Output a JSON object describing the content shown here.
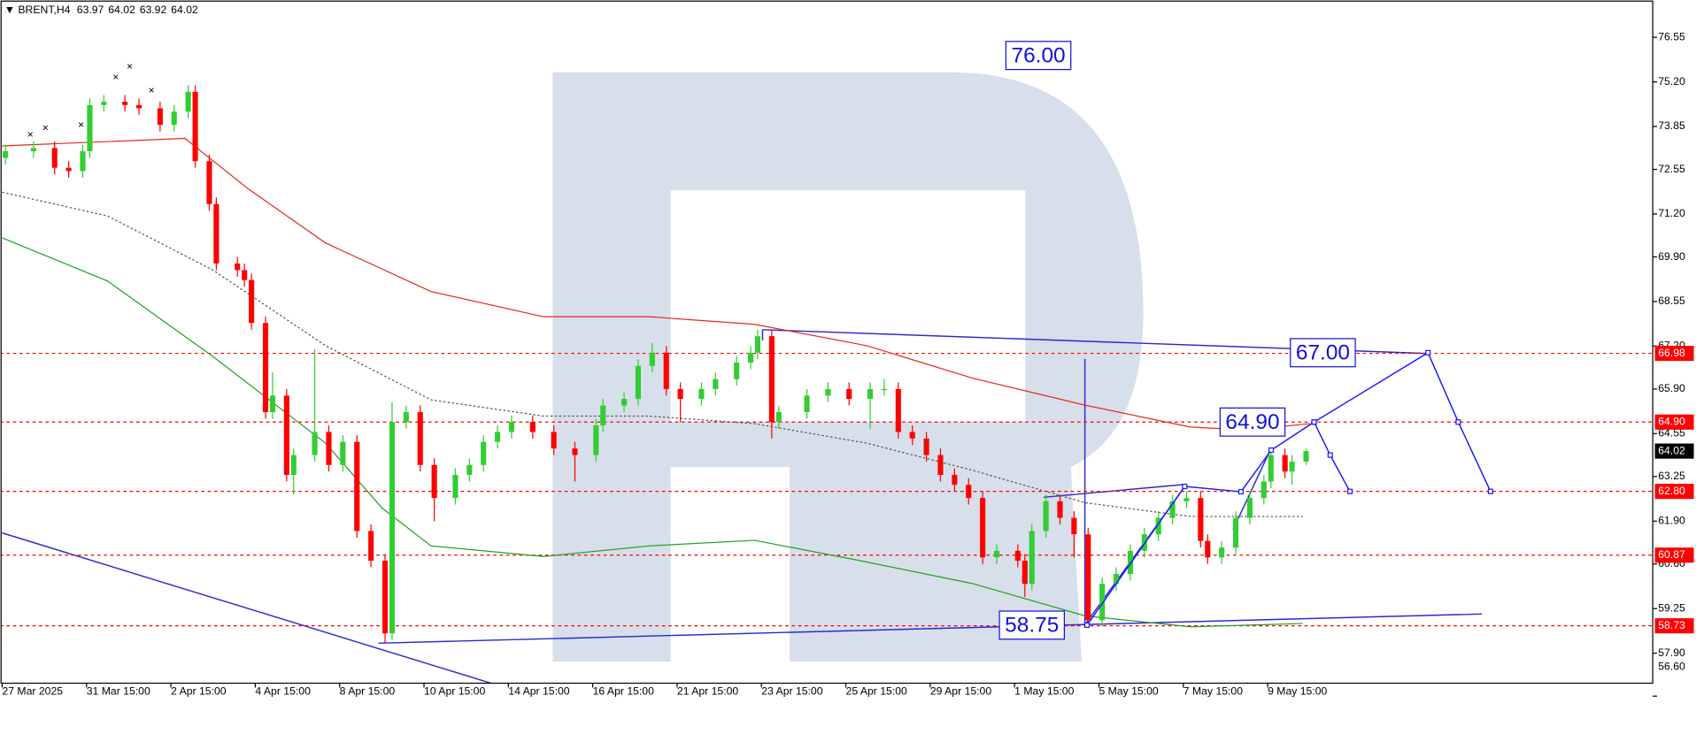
{
  "chart_data": {
    "type": "candlestick",
    "symbol": "BRENT,H4",
    "header_ohlc": [
      63.97,
      64.02,
      63.92,
      64.02
    ],
    "up_color": "#32cd32",
    "down_color": "#ff0000",
    "x": [
      0,
      4,
      7,
      9,
      11,
      12,
      14,
      17,
      19,
      22,
      24,
      26,
      27,
      29,
      30,
      33,
      34,
      35,
      37,
      38,
      40,
      41,
      44,
      46,
      48,
      50,
      52,
      54,
      55,
      57,
      59,
      61,
      64,
      66,
      68,
      70,
      72,
      75,
      78,
      81,
      84,
      85,
      88,
      90,
      92,
      94,
      96,
      99,
      101,
      104,
      106,
      107,
      109,
      110,
      114,
      117,
      120,
      123,
      125,
      127,
      129,
      131,
      133,
      135,
      137,
      139,
      141,
      144,
      145,
      146,
      148,
      150,
      152,
      154,
      156,
      158,
      160,
      162,
      164,
      166,
      168,
      170,
      171,
      173,
      175,
      177,
      179,
      180,
      182,
      183,
      185
    ],
    "open": [
      72.9,
      73.1,
      73.2,
      72.6,
      72.5,
      73.1,
      74.5,
      74.6,
      74.5,
      74.4,
      73.9,
      74.3,
      74.9,
      72.8,
      71.5,
      69.7,
      69.5,
      69.2,
      67.9,
      65.2,
      65.7,
      63.3,
      63.9,
      64.6,
      63.6,
      64.3,
      61.6,
      60.7,
      58.5,
      64.9,
      65.2,
      63.6,
      62.6,
      63.3,
      63.6,
      64.3,
      64.6,
      64.9,
      64.6,
      64.1,
      63.9,
      64.8,
      65.4,
      65.6,
      66.6,
      67.0,
      65.9,
      65.6,
      65.9,
      66.2,
      66.7,
      67.0,
      67.5,
      64.9,
      65.2,
      65.7,
      65.9,
      65.6,
      65.9,
      65.9,
      64.6,
      64.4,
      63.9,
      63.3,
      63.0,
      62.6,
      60.8,
      61.0,
      60.7,
      60.0,
      61.6,
      62.5,
      62.0,
      61.5,
      58.9,
      60.0,
      60.3,
      61.0,
      61.5,
      62.0,
      62.5,
      62.6,
      61.3,
      60.8,
      61.1,
      62.0,
      62.6,
      63.1,
      63.9,
      63.4,
      63.7
    ],
    "high": [
      73.3,
      73.4,
      73.4,
      72.8,
      73.3,
      74.7,
      74.8,
      74.8,
      74.7,
      74.6,
      74.5,
      75.1,
      75.1,
      73.0,
      71.7,
      69.9,
      69.7,
      69.4,
      68.1,
      66.4,
      65.9,
      64.1,
      67.1,
      64.8,
      64.5,
      64.5,
      61.8,
      60.9,
      65.5,
      65.4,
      65.4,
      63.8,
      63.5,
      63.8,
      64.5,
      64.8,
      65.1,
      65.1,
      64.8,
      64.3,
      65.0,
      65.6,
      65.8,
      66.8,
      67.3,
      67.2,
      66.1,
      66.1,
      66.4,
      66.9,
      67.2,
      67.7,
      67.7,
      65.4,
      65.9,
      66.1,
      66.1,
      66.1,
      66.2,
      66.1,
      64.8,
      64.6,
      64.1,
      63.5,
      63.2,
      62.8,
      61.2,
      61.2,
      60.9,
      61.8,
      62.7,
      62.7,
      62.2,
      61.7,
      60.2,
      60.5,
      61.2,
      61.7,
      62.2,
      62.7,
      62.8,
      62.8,
      61.5,
      61.3,
      62.2,
      62.8,
      63.3,
      64.1,
      64.1,
      63.9,
      64.1
    ],
    "low": [
      72.7,
      72.9,
      72.4,
      72.3,
      72.3,
      72.9,
      74.3,
      74.3,
      74.2,
      73.7,
      73.7,
      74.1,
      72.6,
      71.3,
      69.5,
      69.3,
      69.0,
      67.7,
      65.0,
      65.0,
      63.1,
      62.7,
      63.7,
      63.4,
      63.4,
      61.4,
      60.5,
      58.2,
      58.3,
      64.7,
      63.4,
      61.9,
      62.4,
      63.1,
      63.4,
      64.1,
      64.4,
      64.4,
      63.9,
      63.1,
      63.7,
      64.6,
      65.2,
      65.4,
      66.4,
      65.7,
      64.9,
      65.4,
      65.7,
      66.0,
      66.5,
      66.8,
      64.4,
      64.7,
      65.0,
      65.5,
      65.4,
      64.7,
      65.7,
      64.4,
      64.2,
      63.7,
      63.1,
      62.8,
      62.4,
      60.6,
      60.6,
      60.5,
      59.6,
      59.8,
      61.4,
      61.8,
      60.8,
      58.73,
      58.7,
      59.8,
      60.1,
      60.8,
      61.3,
      61.8,
      62.3,
      61.1,
      60.6,
      60.6,
      60.9,
      61.8,
      62.4,
      62.9,
      63.2,
      63.0,
      63.6
    ],
    "close": [
      73.1,
      73.2,
      72.6,
      72.5,
      73.1,
      74.5,
      74.6,
      74.5,
      74.4,
      73.9,
      74.3,
      74.9,
      72.8,
      71.5,
      69.7,
      69.5,
      69.2,
      67.9,
      65.2,
      65.7,
      63.3,
      63.9,
      64.6,
      63.6,
      64.3,
      61.6,
      60.7,
      58.5,
      64.9,
      65.2,
      63.6,
      62.6,
      63.3,
      63.6,
      64.3,
      64.6,
      64.9,
      64.6,
      64.1,
      63.9,
      64.8,
      65.4,
      65.6,
      66.6,
      67.0,
      65.9,
      65.6,
      65.9,
      66.2,
      66.7,
      67.0,
      67.5,
      64.9,
      65.2,
      65.7,
      65.9,
      65.6,
      65.9,
      65.9,
      64.6,
      64.4,
      63.9,
      63.3,
      63.0,
      62.6,
      60.8,
      61.0,
      60.7,
      60.0,
      61.6,
      62.5,
      62.0,
      61.5,
      58.9,
      60.0,
      60.3,
      61.0,
      61.5,
      62.0,
      62.5,
      62.6,
      61.3,
      60.8,
      61.1,
      62.0,
      62.6,
      63.1,
      63.9,
      63.4,
      63.7,
      64.02
    ],
    "overlays": [
      {
        "color": "#e8281e",
        "style": "solid",
        "x": [
          0,
          26,
          35,
          46,
          61,
          77,
          92,
          107,
          123,
          138,
          154,
          169,
          177,
          186
        ],
        "values": [
          73.26,
          73.49,
          71.96,
          70.32,
          68.85,
          68.09,
          68.09,
          67.86,
          67.21,
          66.23,
          65.41,
          64.75,
          64.66,
          64.85
        ]
      },
      {
        "color": "#555555",
        "style": "dashed",
        "x": [
          0,
          15,
          30,
          46,
          61,
          77,
          92,
          107,
          123,
          138,
          154,
          169,
          185
        ],
        "values": [
          71.86,
          71.14,
          69.5,
          67.21,
          65.57,
          65.08,
          65.08,
          64.85,
          64.26,
          63.44,
          62.46,
          62.04,
          62.04
        ]
      },
      {
        "color": "#22a022",
        "style": "solid",
        "x": [
          0,
          15,
          30,
          46,
          54,
          61,
          77,
          92,
          107,
          123,
          138,
          154,
          169,
          185
        ],
        "values": [
          70.48,
          69.17,
          66.88,
          64.26,
          62.3,
          61.15,
          60.83,
          61.15,
          61.32,
          60.66,
          60.01,
          59.03,
          58.7,
          58.8
        ]
      }
    ],
    "forecast_color": "#1a1aff",
    "forecast": [
      {
        "x": [
          154.3,
          168.2,
          176.2,
          180.5,
          186.6,
          188.9,
          191.7
        ],
        "values": [
          58.75,
          62.95,
          62.79,
          64.05,
          64.9,
          63.9,
          62.8
        ]
      },
      {
        "x": [
          186.6,
          202.8,
          207.1,
          211.7
        ],
        "values": [
          64.9,
          67.0,
          64.9,
          62.8
        ]
      }
    ],
    "level_color": "#ff0000",
    "levels": [
      66.98,
      {
        "value": 64.9,
        "label": "64.90"
      },
      {
        "value": 62.8,
        "label": "62.80"
      },
      60.87,
      58.73
    ],
    "current_price": 64.02,
    "annotations": [
      {
        "value": 76,
        "label": "76.00"
      },
      {
        "value": 67,
        "label": "67.00"
      },
      {
        "value": 64.9,
        "label": "64.90"
      },
      {
        "value": 58.75,
        "label": "58.75"
      }
    ],
    "ylim": [
      56.55,
      77.68
    ],
    "yticks": [
      76.55,
      {
        "value": 75.2,
        "label": "75.20"
      },
      73.85,
      72.55,
      {
        "value": 71.2,
        "label": "71.20"
      },
      {
        "value": 69.9,
        "label": "69.90"
      },
      68.55,
      {
        "value": 67.2,
        "label": "67.20"
      },
      {
        "value": 65.9,
        "label": "65.90"
      },
      64.55,
      63.25,
      {
        "value": 61.9,
        "label": "61.90"
      },
      {
        "value": 60.6,
        "label": "60.60"
      },
      59.25,
      {
        "value": 57.9,
        "label": "57.90"
      },
      {
        "value": 56.6,
        "label": "56.60"
      }
    ],
    "xlim": [
      0,
      235
    ],
    "xticks": [
      {
        "value": 0,
        "label": "27 Mar 2025"
      },
      {
        "value": 12,
        "label": "31 Mar 15:00"
      },
      {
        "value": 24,
        "label": "2 Apr 15:00"
      },
      {
        "value": 36,
        "label": "4 Apr 15:00"
      },
      {
        "value": 48,
        "label": "8 Apr 15:00"
      },
      {
        "value": 60,
        "label": "10 Apr 15:00"
      },
      {
        "value": 72,
        "label": "14 Apr 15:00"
      },
      {
        "value": 84,
        "label": "16 Apr 15:00"
      },
      {
        "value": 96,
        "label": "21 Apr 15:00"
      },
      {
        "value": 108,
        "label": "23 Apr 15:00"
      },
      {
        "value": 120,
        "label": "25 Apr 15:00"
      },
      {
        "value": 132,
        "label": "29 Apr 15:00"
      },
      {
        "value": 144,
        "label": "1 May 15:00"
      },
      {
        "value": 156,
        "label": "5 May 15:00"
      },
      {
        "value": 168,
        "label": "7 May 15:00"
      },
      {
        "value": 180,
        "label": "9 May 15:00"
      }
    ]
  }
}
